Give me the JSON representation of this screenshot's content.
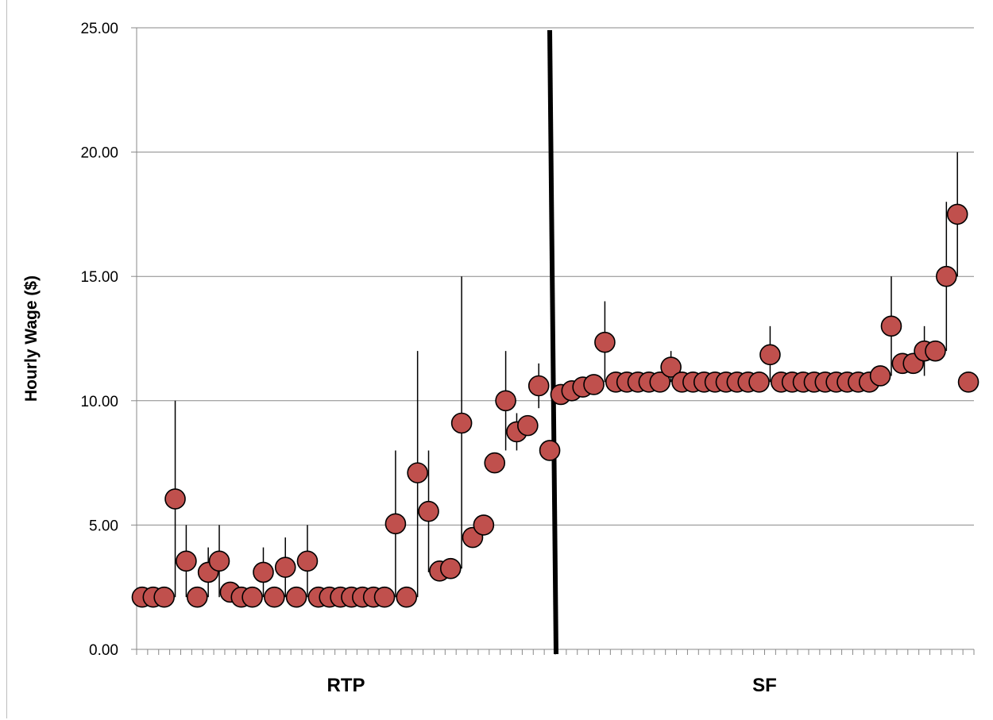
{
  "chart_data": {
    "type": "scatter",
    "title": "",
    "xlabel": "",
    "ylabel": "Hourly Wage ($)",
    "ylim": [
      0,
      25
    ],
    "yticks": [
      "0.00",
      "5.00",
      "10.00",
      "15.00",
      "20.00",
      "25.00"
    ],
    "grid": true,
    "legend": "none",
    "colors": {
      "marker_fill": "#c0504d",
      "marker_edge": "#000000",
      "gridline": "#888888",
      "divider": "#000000"
    },
    "groups": [
      {
        "label": "RTP",
        "first_index": 1,
        "last_index": 38
      },
      {
        "label": "SF",
        "first_index": 39,
        "last_index": 76
      }
    ],
    "divider_between_points": [
      38,
      39
    ],
    "points": [
      {
        "x": 1,
        "y": 2.1
      },
      {
        "x": 2,
        "y": 2.1
      },
      {
        "x": 3,
        "y": 2.1
      },
      {
        "x": 4,
        "y": 6.05,
        "high": 10.0,
        "low": 2.1
      },
      {
        "x": 5,
        "y": 3.55,
        "high": 5.0,
        "low": 2.1
      },
      {
        "x": 6,
        "y": 2.1
      },
      {
        "x": 7,
        "y": 3.1,
        "high": 4.1,
        "low": 2.1
      },
      {
        "x": 8,
        "y": 3.55,
        "high": 5.0,
        "low": 2.1
      },
      {
        "x": 9,
        "y": 2.3
      },
      {
        "x": 10,
        "y": 2.1
      },
      {
        "x": 11,
        "y": 2.1
      },
      {
        "x": 12,
        "y": 3.1,
        "high": 4.1,
        "low": 2.1
      },
      {
        "x": 13,
        "y": 2.1
      },
      {
        "x": 14,
        "y": 3.3,
        "high": 4.5,
        "low": 2.1
      },
      {
        "x": 15,
        "y": 2.1
      },
      {
        "x": 16,
        "y": 3.55,
        "high": 5.0,
        "low": 2.1
      },
      {
        "x": 17,
        "y": 2.1
      },
      {
        "x": 18,
        "y": 2.1
      },
      {
        "x": 19,
        "y": 2.1
      },
      {
        "x": 20,
        "y": 2.1
      },
      {
        "x": 21,
        "y": 2.1
      },
      {
        "x": 22,
        "y": 2.1
      },
      {
        "x": 23,
        "y": 2.1
      },
      {
        "x": 24,
        "y": 5.05,
        "high": 8.0,
        "low": 2.1
      },
      {
        "x": 25,
        "y": 2.1
      },
      {
        "x": 26,
        "y": 7.1,
        "high": 12.0,
        "low": 2.1
      },
      {
        "x": 27,
        "y": 5.55,
        "high": 8.0,
        "low": 3.1
      },
      {
        "x": 28,
        "y": 3.15
      },
      {
        "x": 29,
        "y": 3.25
      },
      {
        "x": 30,
        "y": 9.1,
        "high": 15.0,
        "low": 3.25
      },
      {
        "x": 31,
        "y": 4.5
      },
      {
        "x": 32,
        "y": 5.0
      },
      {
        "x": 33,
        "y": 7.5
      },
      {
        "x": 34,
        "y": 10.0,
        "high": 12.0,
        "low": 8.0
      },
      {
        "x": 35,
        "y": 8.75,
        "high": 9.5,
        "low": 8.0
      },
      {
        "x": 36,
        "y": 9.0
      },
      {
        "x": 37,
        "y": 10.6,
        "high": 11.5,
        "low": 9.7
      },
      {
        "x": 38,
        "y": 8.0
      },
      {
        "x": 39,
        "y": 10.25
      },
      {
        "x": 40,
        "y": 10.4
      },
      {
        "x": 41,
        "y": 10.55
      },
      {
        "x": 42,
        "y": 10.65
      },
      {
        "x": 43,
        "y": 12.35,
        "high": 14.0,
        "low": 10.75
      },
      {
        "x": 44,
        "y": 10.75
      },
      {
        "x": 45,
        "y": 10.75
      },
      {
        "x": 46,
        "y": 10.75
      },
      {
        "x": 47,
        "y": 10.75
      },
      {
        "x": 48,
        "y": 10.75
      },
      {
        "x": 49,
        "y": 11.35,
        "high": 12.0,
        "low": 10.75
      },
      {
        "x": 50,
        "y": 10.75
      },
      {
        "x": 51,
        "y": 10.75
      },
      {
        "x": 52,
        "y": 10.75
      },
      {
        "x": 53,
        "y": 10.75
      },
      {
        "x": 54,
        "y": 10.75
      },
      {
        "x": 55,
        "y": 10.75
      },
      {
        "x": 56,
        "y": 10.75
      },
      {
        "x": 57,
        "y": 10.75
      },
      {
        "x": 58,
        "y": 11.85,
        "high": 13.0,
        "low": 10.75
      },
      {
        "x": 59,
        "y": 10.75
      },
      {
        "x": 60,
        "y": 10.75
      },
      {
        "x": 61,
        "y": 10.75
      },
      {
        "x": 62,
        "y": 10.75
      },
      {
        "x": 63,
        "y": 10.75
      },
      {
        "x": 64,
        "y": 10.75
      },
      {
        "x": 65,
        "y": 10.75
      },
      {
        "x": 66,
        "y": 10.75
      },
      {
        "x": 67,
        "y": 10.75
      },
      {
        "x": 68,
        "y": 11.0
      },
      {
        "x": 69,
        "y": 13.0,
        "high": 15.0,
        "low": 11.0
      },
      {
        "x": 70,
        "y": 11.5
      },
      {
        "x": 71,
        "y": 11.5
      },
      {
        "x": 72,
        "y": 12.0,
        "high": 13.0,
        "low": 11.0
      },
      {
        "x": 73,
        "y": 12.0
      },
      {
        "x": 74,
        "y": 15.0,
        "high": 18.0,
        "low": 12.0
      },
      {
        "x": 75,
        "y": 17.5,
        "high": 20.0,
        "low": 15.0
      },
      {
        "x": 76,
        "y": 10.75
      }
    ]
  }
}
